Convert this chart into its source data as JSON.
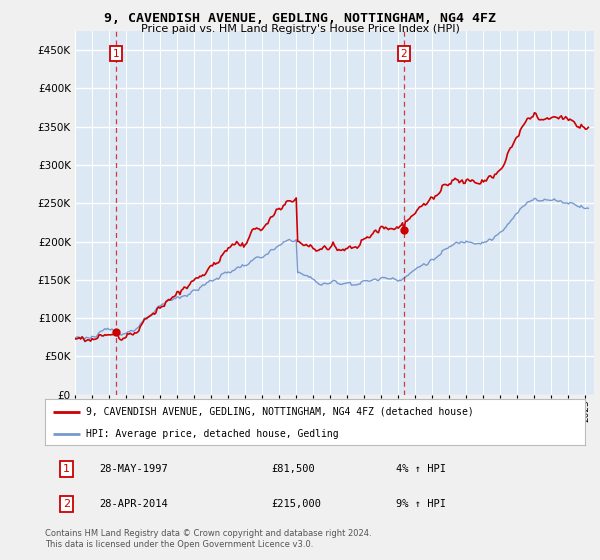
{
  "title": "9, CAVENDISH AVENUE, GEDLING, NOTTINGHAM, NG4 4FZ",
  "subtitle": "Price paid vs. HM Land Registry's House Price Index (HPI)",
  "ylim": [
    0,
    475000
  ],
  "yticks": [
    0,
    50000,
    100000,
    150000,
    200000,
    250000,
    300000,
    350000,
    400000,
    450000
  ],
  "xlim_start": 1995.0,
  "xlim_end": 2025.5,
  "sale1_year": 1997.4,
  "sale1_price": 81500,
  "sale2_year": 2014.33,
  "sale2_price": 215000,
  "sale1_label": "28-MAY-1997",
  "sale1_amount": "£81,500",
  "sale1_hpi": "4% ↑ HPI",
  "sale2_label": "28-APR-2014",
  "sale2_amount": "£215,000",
  "sale2_hpi": "9% ↑ HPI",
  "legend_line1": "9, CAVENDISH AVENUE, GEDLING, NOTTINGHAM, NG4 4FZ (detached house)",
  "legend_line2": "HPI: Average price, detached house, Gedling",
  "footer": "Contains HM Land Registry data © Crown copyright and database right 2024.\nThis data is licensed under the Open Government Licence v3.0.",
  "line_color_property": "#cc0000",
  "line_color_hpi": "#7799cc",
  "background_color": "#dde8f5",
  "grid_color": "#ffffff",
  "marker_box_color": "#cc0000"
}
